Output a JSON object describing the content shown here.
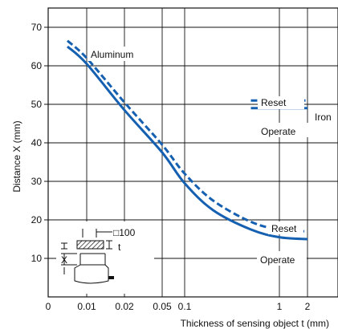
{
  "chart_data": {
    "type": "line",
    "title": "",
    "xlabel": "Thickness of sensing object t (mm)",
    "ylabel": "Distance X (mm)",
    "x_tick_labels": [
      "0",
      "0.01",
      "0.02",
      "0.05",
      "0.1",
      "1",
      "2"
    ],
    "y_tick_labels": [
      "10",
      "20",
      "30",
      "40",
      "50",
      "60",
      "70"
    ],
    "ylim": [
      0,
      75
    ],
    "grid": true,
    "series": [
      {
        "name": "Reset",
        "material": "Aluminum",
        "style": "dashed",
        "color": "#1560b0",
        "x": [
          0.005,
          0.01,
          0.02,
          0.05,
          0.1,
          0.2,
          0.5,
          1,
          2
        ],
        "y": [
          66.5,
          62,
          50.5,
          39.5,
          32,
          25,
          19.5,
          17.5,
          17
        ]
      },
      {
        "name": "Operate",
        "material": "Aluminum",
        "style": "solid",
        "color": "#1560b0",
        "x": [
          0.005,
          0.01,
          0.02,
          0.05,
          0.1,
          0.2,
          0.5,
          1,
          2
        ],
        "y": [
          65,
          60.5,
          48.5,
          37.5,
          29.5,
          22.5,
          17.5,
          15.5,
          15
        ]
      },
      {
        "name": "Reset",
        "material": "Iron",
        "style": "dashed",
        "color": "#1560b0",
        "x": [
          0.5,
          2
        ],
        "y": [
          51,
          51
        ]
      },
      {
        "name": "Operate",
        "material": "Iron",
        "style": "solid",
        "color": "#1560b0",
        "x": [
          0.5,
          2
        ],
        "y": [
          49,
          49
        ]
      }
    ],
    "annotations": {
      "aluminum": "Aluminum",
      "iron": "Iron",
      "reset_iron": "Reset",
      "operate_iron": "Operate",
      "reset_aluminum": "Reset",
      "operate_aluminum": "Operate",
      "inset_size": "□100",
      "inset_t": "t",
      "inset_x": "X"
    }
  }
}
